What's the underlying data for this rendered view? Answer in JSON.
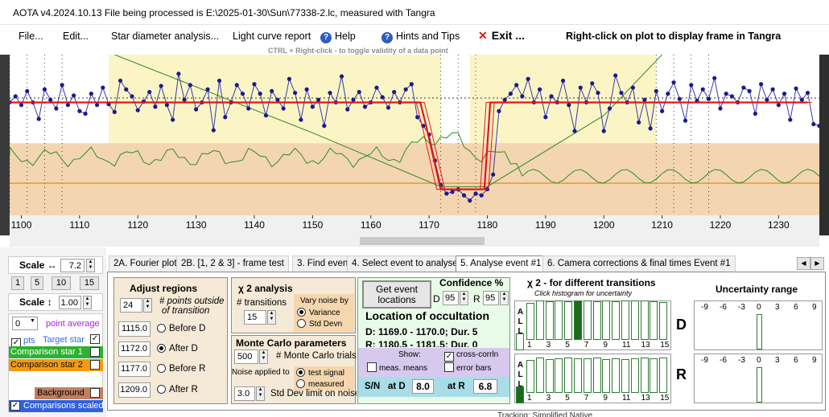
{
  "window": {
    "title": "AOTA v4.2024.10.13     File being processed is E:\\2025-01-30\\Sun\\77338-2.lc, measured with Tangra"
  },
  "menu": {
    "file": "File...",
    "edit": "Edit...",
    "star_diameter": "Star diameter analysis...",
    "light_curve": "Light curve report",
    "help": "Help",
    "hints": "Hints and Tips",
    "exit": "Exit ...",
    "right_click_note": "Right-click on plot to display frame in Tangra"
  },
  "plot_hint": "CTRL + Right-click  -  to toggle validity of a data point",
  "chart_data": {
    "type": "line",
    "x_ticks": [
      "1100",
      "1110",
      "1120",
      "1130",
      "1140",
      "1150",
      "1160",
      "1170",
      "1180",
      "1190",
      "1200",
      "1210",
      "1220",
      "1230"
    ],
    "xlim": [
      1098,
      1237
    ],
    "ylim": [
      -0.25,
      1.6
    ],
    "series": [
      {
        "name": "data",
        "x": [
          1098,
          1099,
          1100,
          1101,
          1102,
          1103,
          1104,
          1105,
          1106,
          1107,
          1108,
          1109,
          1110,
          1111,
          1112,
          1113,
          1114,
          1115,
          1116,
          1117,
          1118,
          1119,
          1120,
          1121,
          1122,
          1123,
          1124,
          1125,
          1126,
          1127,
          1128,
          1129,
          1130,
          1131,
          1132,
          1133,
          1134,
          1135,
          1136,
          1137,
          1138,
          1139,
          1140,
          1141,
          1142,
          1143,
          1144,
          1145,
          1146,
          1147,
          1148,
          1149,
          1150,
          1151,
          1152,
          1153,
          1154,
          1155,
          1156,
          1157,
          1158,
          1159,
          1160,
          1161,
          1162,
          1163,
          1164,
          1165,
          1166,
          1167,
          1168,
          1169,
          1170,
          1171,
          1172,
          1173,
          1174,
          1175,
          1176,
          1177,
          1178,
          1179,
          1180,
          1181,
          1182,
          1183,
          1184,
          1185,
          1186,
          1187,
          1188,
          1189,
          1190,
          1191,
          1192,
          1193,
          1194,
          1195,
          1196,
          1197,
          1198,
          1199,
          1200,
          1201,
          1202,
          1203,
          1204,
          1205,
          1206,
          1207,
          1208,
          1209,
          1210,
          1211,
          1212,
          1213,
          1214,
          1215,
          1216,
          1217,
          1218,
          1219,
          1220,
          1221,
          1222,
          1223,
          1224,
          1225,
          1226,
          1227,
          1228,
          1229,
          1230,
          1231,
          1232,
          1233,
          1234,
          1235,
          1236,
          1237
        ],
        "y": [
          1.05,
          1.12,
          1.02,
          1.18,
          1.05,
          0.86,
          1.2,
          1.08,
          0.98,
          1.25,
          1.02,
          1.13,
          0.95,
          0.92,
          1.15,
          1.02,
          1.22,
          1.03,
          0.94,
          1.3,
          1.2,
          1.12,
          0.96,
          1.06,
          1.17,
          1.0,
          1.24,
          1.02,
          0.85,
          1.38,
          1.08,
          1.25,
          0.97,
          1.05,
          1.2,
          0.73,
          1.3,
          0.88,
          1.05,
          1.25,
          1.15,
          0.98,
          1.26,
          1.15,
          0.9,
          1.18,
          1.08,
          0.98,
          1.32,
          1.16,
          0.85,
          1.2,
          1.0,
          1.08,
          0.78,
          1.16,
          1.05,
          1.35,
          0.97,
          1.08,
          1.17,
          1.0,
          1.05,
          1.22,
          1.11,
          0.99,
          1.17,
          1.05,
          1.2,
          1.26,
          0.88,
          0.78,
          0.68,
          0.38,
          0.1,
          0.0,
          0.02,
          0.05,
          -0.02,
          -0.08,
          0.0,
          -0.02,
          0.05,
          0.22,
          0.95,
          1.08,
          1.15,
          1.25,
          1.12,
          1.32,
          1.05,
          1.2,
          0.88,
          1.12,
          1.05,
          1.3,
          1.02,
          0.72,
          1.22,
          1.05,
          1.27,
          1.16,
          0.72,
          0.98,
          1.36,
          1.16,
          1.05,
          1.22,
          0.82,
          1.08,
          0.75,
          1.18,
          0.95,
          1.15,
          1.28,
          1.09,
          0.84,
          1.25,
          1.07,
          1.2,
          1.09,
          1.33,
          0.98,
          1.15,
          1.12,
          1.05,
          1.22,
          1.18,
          0.92,
          1.26,
          1.08,
          1.2,
          1.02,
          1.15,
          0.85,
          1.21,
          1.08,
          1.16,
          0.8,
          0.78
        ]
      },
      {
        "name": "model",
        "x": [
          1098,
          1168.5,
          1169.5,
          1172.0,
          1179.5,
          1180.5,
          1235
        ],
        "y": [
          1.05,
          1.05,
          0.78,
          0.05,
          0.05,
          1.05,
          1.05
        ]
      }
    ],
    "baseline_levels": {
      "event_level": 0.05,
      "band_top": 0.58
    }
  },
  "scale_panel": {
    "scale_h_label": "Scale ↔",
    "scale_h_value": "7.2",
    "zoom_buttons": [
      "1",
      "5",
      "10",
      "15"
    ],
    "scale_v_label": "Scale ↕",
    "scale_v_value": "1.00",
    "point_avg_value": "0",
    "point_avg_label": "point average",
    "pts_label": "pts",
    "target_star": "Target star",
    "comp1": "Comparison star 1",
    "comp2": "Comparison star 2",
    "background": "Background",
    "comparisons_scaled": "Comparisons scaled",
    "colors": {
      "target": "#2e6de0",
      "comp1": "#2fb12f",
      "comp2": "#f39a12",
      "background": "#c08060",
      "scaled": "#3060e0"
    }
  },
  "tabs": [
    {
      "label": "2A. Fourier plot"
    },
    {
      "label": "2B. [1, 2 & 3] - frame test"
    },
    {
      "label": "3. Find events"
    },
    {
      "label": "4. Select event to analyse"
    },
    {
      "label": "5. Analyse event #1"
    },
    {
      "label": "6. Camera corrections & final times Event #1"
    }
  ],
  "adjust": {
    "title": "Adjust regions",
    "points_value": "24",
    "points_label_1": "# points outside",
    "points_label_2": "of transition",
    "rows": [
      {
        "value": "1115.0",
        "label": "Before D"
      },
      {
        "value": "1172.0",
        "label": "After D"
      },
      {
        "value": "1177.0",
        "label": "Before R"
      },
      {
        "value": "1209.0",
        "label": "After R"
      }
    ]
  },
  "chi2": {
    "title": "χ 2  analysis",
    "transitions_label": "# transitions",
    "transitions_value": "15",
    "vary_noise": "Vary noise by",
    "variance": "Variance",
    "std_devn": "Std Devn"
  },
  "monte": {
    "title": "Monte Carlo parameters",
    "trials_value": "500",
    "trials_label": "# Monte Carlo trials",
    "noise_applied": "Noise applied to",
    "test_signal": "test signal",
    "measured": "measured",
    "sd_value": "3.0",
    "sd_label": "Std Dev limit on noise"
  },
  "location": {
    "get_event_1": "Get event",
    "get_event_2": "locations",
    "confidence": "Confidence %",
    "d_label": "D",
    "d_value": "95",
    "r_label": "R",
    "r_value": "95",
    "title": "Location of occultation",
    "d_line": "D: 1169.0 - 1170.0; Dur. 5",
    "r_line": "R: 1180.5 - 1181.5; Dur. 0",
    "show": "Show:",
    "meas_means": "meas. means",
    "cross_corrln": "cross-corrln",
    "error_bars": "error bars",
    "sn_label": "S/N",
    "at_d": "at D",
    "at_d_value": "8.0",
    "at_r": "at R",
    "at_r_value": "6.8"
  },
  "transitions": {
    "title": "χ 2  - for different transitions",
    "subtitle": "Click histogram for uncertainty",
    "all_label": "A L L",
    "d_ticks": [
      "1",
      "3",
      "5",
      "7",
      "9",
      "11",
      "13",
      "15"
    ],
    "r_ticks": [
      "1",
      "3",
      "5",
      "7",
      "9",
      "11",
      "13",
      "15"
    ],
    "d_letter": "D",
    "r_letter": "R",
    "uncertainty_title": "Uncertainty range",
    "unc_ticks": [
      "-9",
      "-6",
      "-3",
      "0",
      "3",
      "6",
      "9"
    ]
  },
  "tracking_text": "Tracking:     Simplified Native"
}
